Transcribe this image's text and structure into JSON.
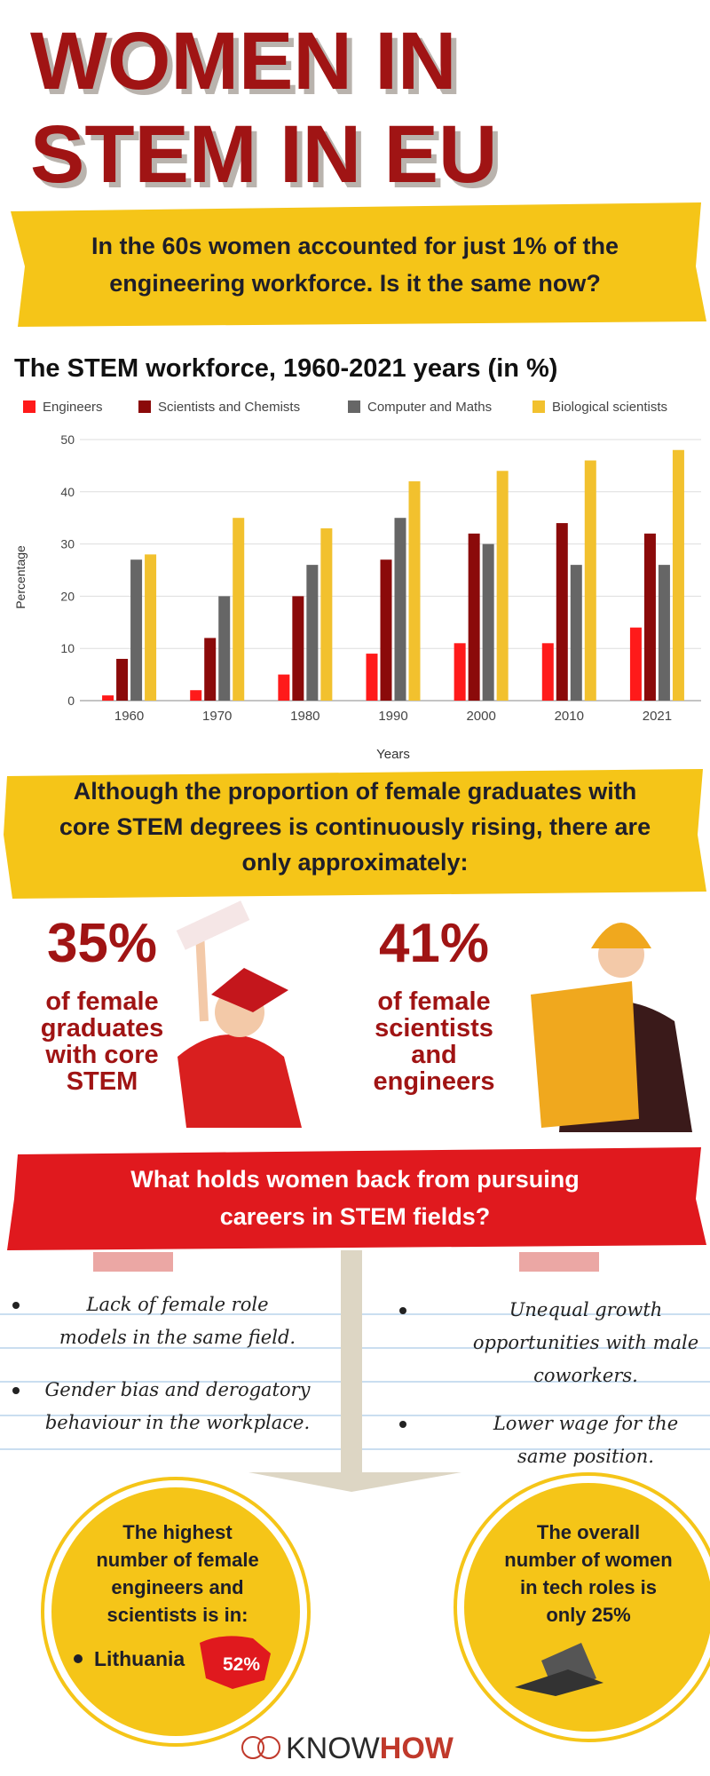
{
  "header": {
    "title_lines": [
      "WOMEN IN",
      "STEM IN EU"
    ]
  },
  "intro": {
    "lines": [
      "In the 60s women accounted for just 1% of the",
      "engineering workforce. Is it the same now?"
    ]
  },
  "chart_data": {
    "type": "bar",
    "title": "The STEM workforce, 1960-2021 years (in %)",
    "x_label": "Years",
    "y_label": "Percentage",
    "categories": [
      "1960",
      "1970",
      "1980",
      "1990",
      "2000",
      "2010",
      "2021"
    ],
    "series": [
      {
        "name": "Engineers",
        "color": "#ff1a1a",
        "values": [
          1,
          2,
          5,
          9,
          11,
          11,
          14
        ]
      },
      {
        "name": "Scientists and Chemists",
        "color": "#8b0a0a",
        "values": [
          8,
          12,
          20,
          27,
          32,
          34,
          32
        ]
      },
      {
        "name": "Computer and Maths",
        "color": "#666666",
        "values": [
          27,
          20,
          26,
          35,
          30,
          26,
          26
        ]
      },
      {
        "name": "Biological scientists",
        "color": "#f2c12e",
        "values": [
          28,
          35,
          33,
          42,
          44,
          46,
          48
        ]
      }
    ],
    "ylim": [
      0,
      50
    ],
    "yticks": [
      0,
      10,
      20,
      30,
      40,
      50
    ],
    "grid": true,
    "legend": "top"
  },
  "graduates": {
    "lines": [
      "Although the proportion of female graduates with",
      "core STEM degrees is continuously rising, there are",
      "only approximately:"
    ]
  },
  "stats": [
    {
      "value": "35%",
      "lines": [
        "of female",
        "graduates",
        "with core",
        "STEM"
      ]
    },
    {
      "value": "41%",
      "lines": [
        "of female",
        "scientists",
        "and",
        "engineers"
      ]
    }
  ],
  "barriers": {
    "question_lines": [
      "What holds women back from pursuing",
      "careers in STEM fields?"
    ],
    "left": [
      {
        "lines": [
          "Lack of female role",
          "models in the same field."
        ]
      },
      {
        "lines": [
          "Gender bias and derogatory",
          "behaviour in the workplace."
        ]
      }
    ],
    "right": [
      {
        "lines": [
          "Unequal growth",
          "opportunities with male",
          "coworkers."
        ]
      },
      {
        "lines": [
          "Lower wage for the",
          "same position."
        ]
      }
    ]
  },
  "facts": {
    "left": {
      "lines": [
        "The highest",
        "number of female",
        "engineers and",
        "scientists is in:"
      ],
      "country": "Lithuania",
      "share": "52%"
    },
    "right": {
      "lines": [
        "The overall",
        "number of women",
        "in tech roles is",
        "only 25%"
      ]
    }
  },
  "footer": {
    "brand_a": "KNOW",
    "brand_b": "HOW"
  }
}
